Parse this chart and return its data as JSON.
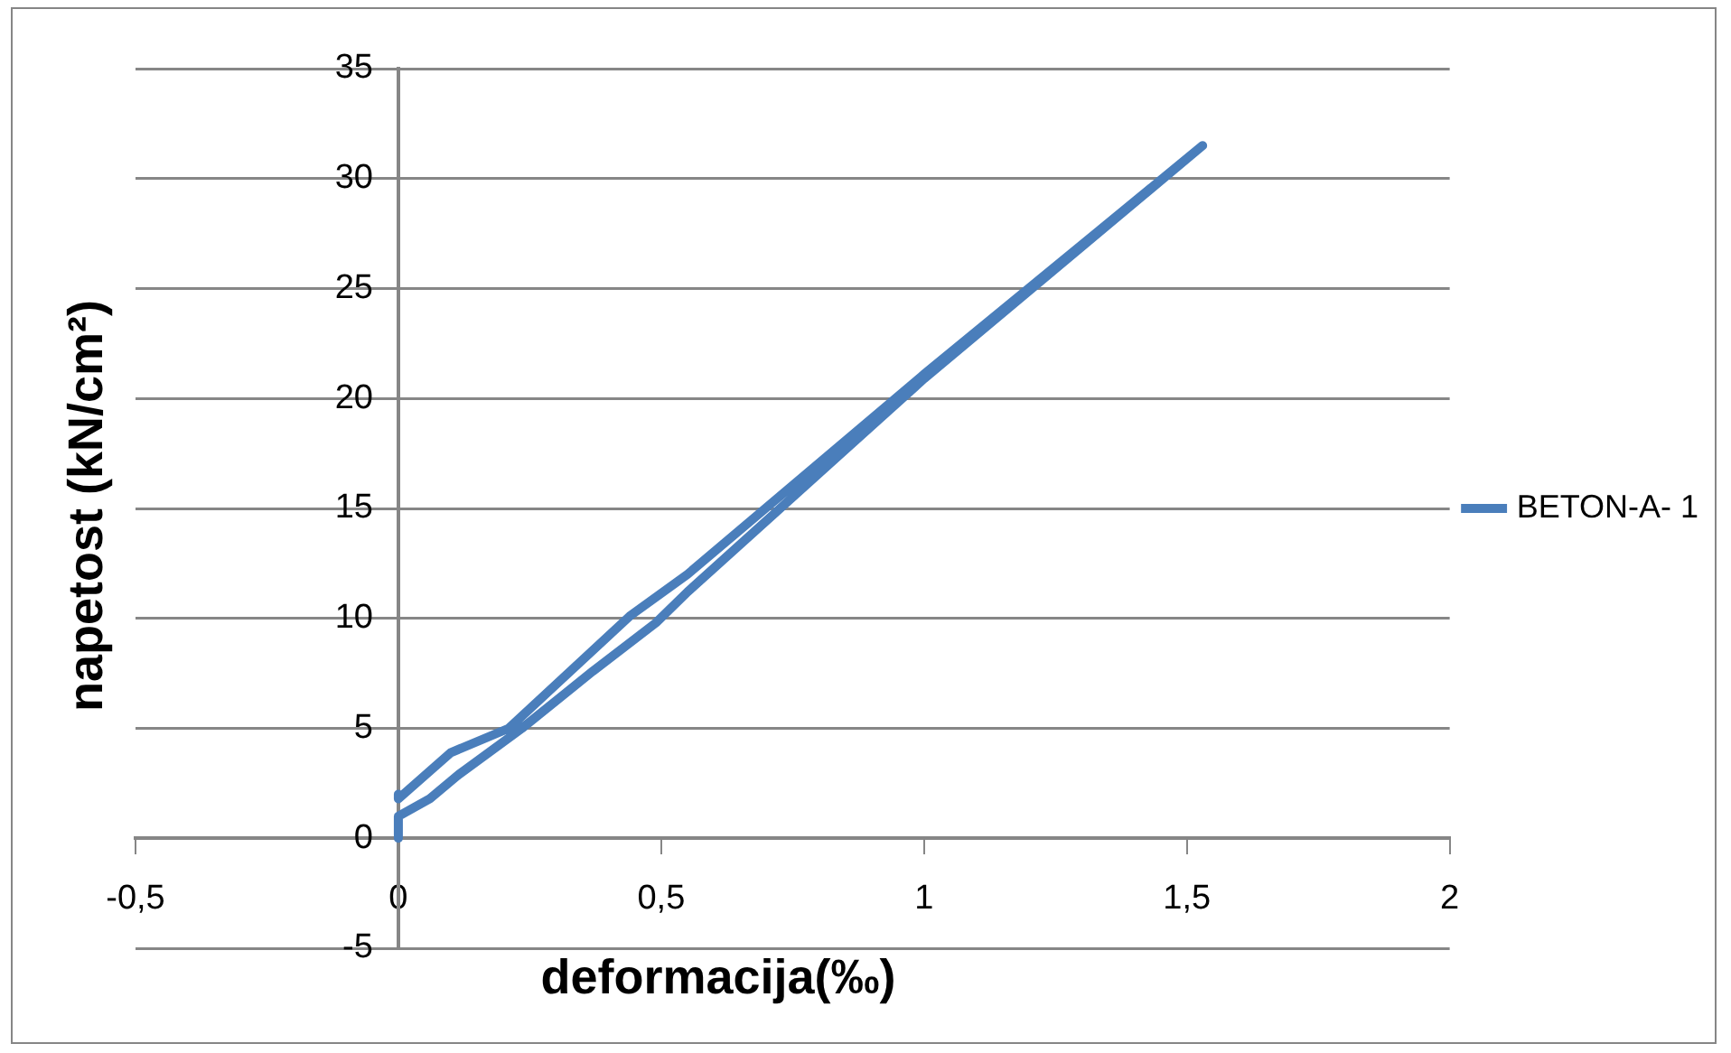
{
  "chart_data": {
    "type": "line",
    "xlabel": "deformacija(‰)",
    "ylabel": "napetost (kN/cm²)",
    "xlim": [
      -0.5,
      2
    ],
    "xticks": [
      {
        "value": -0.5,
        "label": "-0,5"
      },
      0,
      {
        "value": 0.5,
        "label": "0,5"
      },
      1,
      {
        "value": 1.5,
        "label": "1,5"
      },
      2
    ],
    "ylim": [
      -5,
      35
    ],
    "yticks": [
      -5,
      0,
      5,
      10,
      15,
      20,
      25,
      30,
      35
    ],
    "grid": "y",
    "legend": "right",
    "marker": "none",
    "line_style": "solid",
    "series": [
      {
        "name": "BETON-A- 1",
        "color": "#4a7ebb",
        "x": [
          0,
          0,
          0.06,
          0.115,
          0.235,
          0.37,
          0.49,
          0.55,
          1.0,
          1.53,
          1.0,
          0.55,
          0.44,
          0.21,
          0.1,
          0,
          0
        ],
        "values": [
          0,
          1.0,
          1.8,
          2.9,
          5.0,
          7.6,
          9.8,
          11.2,
          20.9,
          31.5,
          21.1,
          12.0,
          10.1,
          5.0,
          3.9,
          1.8,
          2.0
        ]
      }
    ]
  }
}
